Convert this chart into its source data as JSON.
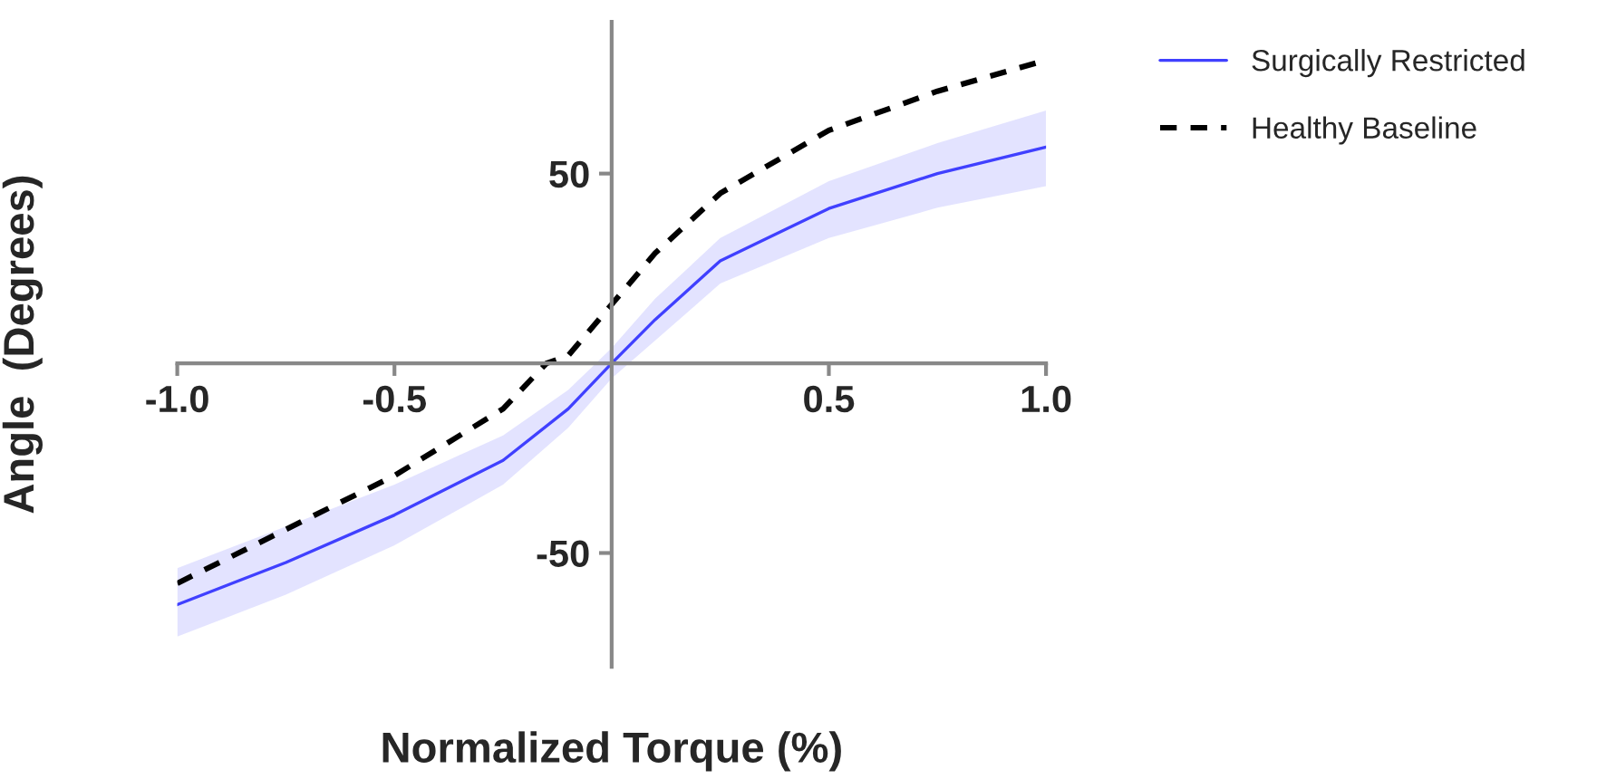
{
  "chart_data": {
    "type": "line",
    "xlabel": "Normalized Torque (%)",
    "ylabel": "Angle  (Degrees)",
    "xlim": [
      -1,
      1
    ],
    "ylim": [
      -80,
      90
    ],
    "xticks": [
      {
        "value": -1,
        "label": "-1.0"
      },
      {
        "value": -0.5,
        "label": "-0.5"
      },
      {
        "value": 0.5,
        "label": "0.5"
      },
      {
        "value": 1,
        "label": "1.0"
      }
    ],
    "yticks": [
      -50,
      50
    ],
    "grid": false,
    "legend": "top right",
    "marker": "none",
    "series": [
      {
        "name": "Surgically Restricted",
        "color": "#4040ff",
        "line_style": "solid",
        "x": [
          -1,
          -0.75,
          -0.5,
          -0.25,
          -0.1,
          0,
          0.1,
          0.25,
          0.5,
          0.75,
          1
        ],
        "values": [
          -63.6,
          -52.5,
          -40,
          -25.6,
          -12,
          0,
          11.5,
          27,
          40.8,
          50,
          57
        ],
        "lower": [
          -72,
          -61,
          -48,
          -32,
          -17,
          -4,
          6,
          21,
          33,
          41,
          46.7
        ],
        "upper": [
          -54,
          -43,
          -32,
          -19,
          -7,
          4,
          17,
          33,
          48,
          58,
          66.6
        ]
      },
      {
        "name": "Healthy Baseline",
        "color": "#000000",
        "line_style": "dashed",
        "x": [
          -1,
          -0.75,
          -0.5,
          -0.25,
          -0.15,
          -0.1,
          0,
          0.1,
          0.25,
          0.5,
          0.75,
          1
        ],
        "values": [
          -58,
          -43.8,
          -29.6,
          -12,
          0,
          2,
          15.5,
          29,
          44.8,
          61.4,
          71.7,
          79.9
        ]
      }
    ]
  }
}
